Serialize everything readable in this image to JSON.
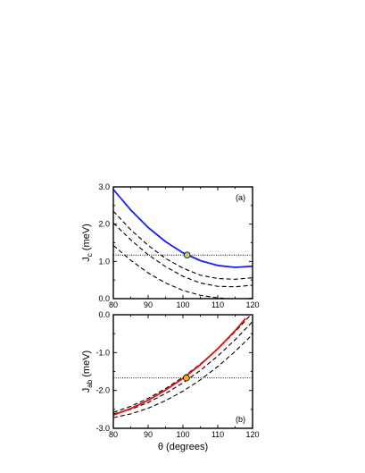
{
  "chart_data": [
    {
      "type": "line",
      "panel_label": "(a)",
      "ylabel": "J",
      "ylabel_sub": "c",
      "ylabel_unit": " (meV)",
      "xlabel": "",
      "xlim": [
        80,
        120
      ],
      "ylim": [
        0.0,
        3.0
      ],
      "x_ticks": [
        80,
        90,
        100,
        110,
        120
      ],
      "x_tick_labels": [
        "80",
        "90",
        "100",
        "110",
        "120"
      ],
      "y_ticks": [
        0.0,
        1.0,
        2.0,
        3.0
      ],
      "y_tick_labels": [
        "0.0",
        "1.0",
        "2.0",
        "3.0"
      ],
      "series": [
        {
          "style": "solid",
          "color": "#1a1aff",
          "x": [
            80,
            85,
            90,
            95,
            100,
            105,
            110,
            115,
            120
          ],
          "y": [
            2.93,
            2.38,
            1.91,
            1.53,
            1.23,
            1.02,
            0.89,
            0.84,
            0.87
          ]
        },
        {
          "style": "dashed",
          "color": "#000000",
          "x": [
            80,
            85,
            90,
            95,
            100,
            105,
            110,
            115,
            120
          ],
          "y": [
            2.35,
            1.85,
            1.43,
            1.08,
            0.82,
            0.63,
            0.54,
            0.52,
            0.56
          ]
        },
        {
          "style": "dashed",
          "color": "#000000",
          "x": [
            80,
            85,
            90,
            95,
            100,
            105,
            110,
            115,
            120
          ],
          "y": [
            2.03,
            1.58,
            1.18,
            0.86,
            0.6,
            0.42,
            0.33,
            0.32,
            0.36
          ]
        },
        {
          "style": "dashed",
          "color": "#000000",
          "x": [
            80,
            85,
            90,
            95,
            100,
            105,
            110,
            115,
            120
          ],
          "y": [
            1.43,
            1.03,
            0.69,
            0.42,
            0.22,
            0.09,
            0.02,
            -0.01,
            0.01
          ]
        }
      ],
      "hline": {
        "y": 1.17,
        "style": "dotted"
      },
      "marker": {
        "x": 101.2,
        "y": 1.17,
        "fill": "#c8c864"
      }
    },
    {
      "type": "line",
      "panel_label": "(b)",
      "ylabel": "J",
      "ylabel_sub": "ab",
      "ylabel_unit": " (meV)",
      "xlabel": "θ (degrees)",
      "xlim": [
        80,
        120
      ],
      "ylim": [
        -3.0,
        0.0
      ],
      "x_ticks": [
        80,
        90,
        100,
        110,
        120
      ],
      "x_tick_labels": [
        "80",
        "90",
        "100",
        "110",
        "120"
      ],
      "y_ticks": [
        -3.0,
        -2.0,
        -1.0,
        0.0
      ],
      "y_tick_labels": [
        "-3.0",
        "-2.0",
        "-1.0",
        "0.0"
      ],
      "series": [
        {
          "style": "solid",
          "color": "#e01010",
          "x": [
            80,
            85,
            90,
            95,
            100,
            105,
            110,
            115,
            118
          ],
          "y": [
            -2.65,
            -2.48,
            -2.26,
            -1.99,
            -1.68,
            -1.32,
            -0.9,
            -0.42,
            -0.1
          ]
        },
        {
          "style": "dashed",
          "color": "#000000",
          "x": [
            80,
            85,
            90,
            95,
            100,
            105,
            110,
            115,
            120
          ],
          "y": [
            -2.58,
            -2.42,
            -2.21,
            -1.95,
            -1.65,
            -1.3,
            -0.9,
            -0.45,
            0.05
          ]
        },
        {
          "style": "dashed",
          "color": "#000000",
          "x": [
            80,
            85,
            90,
            95,
            100,
            105,
            110,
            115,
            120
          ],
          "y": [
            -2.62,
            -2.5,
            -2.32,
            -2.08,
            -1.8,
            -1.47,
            -1.09,
            -0.66,
            -0.18
          ]
        },
        {
          "style": "dashed",
          "color": "#000000",
          "x": [
            80,
            85,
            90,
            95,
            100,
            105,
            110,
            115,
            120
          ],
          "y": [
            -2.72,
            -2.62,
            -2.47,
            -2.27,
            -2.02,
            -1.72,
            -1.37,
            -0.97,
            -0.52
          ]
        }
      ],
      "hline": {
        "y": -1.67,
        "style": "dotted"
      },
      "marker": {
        "x": 101.0,
        "y": -1.67,
        "fill": "#ffb000"
      }
    }
  ]
}
